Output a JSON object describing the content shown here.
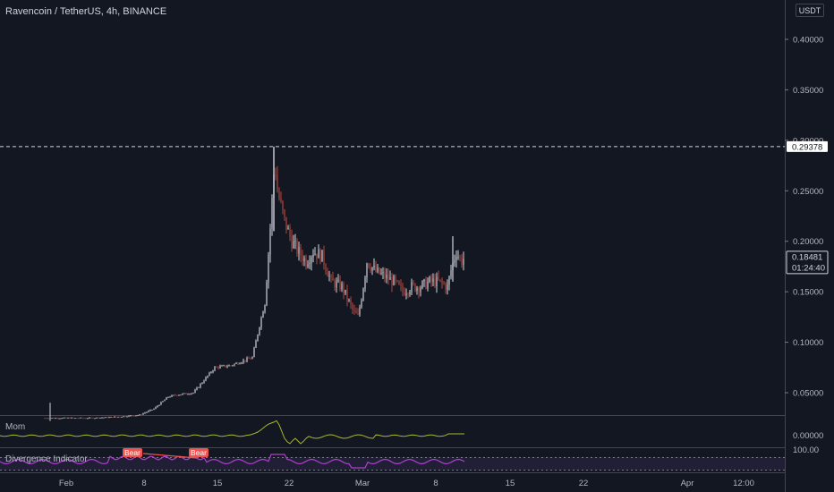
{
  "header": {
    "title": "Ravencoin / TetherUS, 4h, BINANCE",
    "currency": "USDT"
  },
  "price_axis": {
    "ticks": [
      "0.40000",
      "0.35000",
      "0.30000",
      "0.25000",
      "0.20000",
      "0.15000",
      "0.10000",
      "0.05000"
    ],
    "high_label": "0.29378",
    "last_price_label": "0.18481",
    "countdown_label": "01:24:40"
  },
  "indicators": {
    "momentum": {
      "label": "Mom",
      "tick": "0.00000"
    },
    "divergence": {
      "label": "Divergence Indicator",
      "tick": "100.00",
      "badges": [
        "Bear",
        "Bear"
      ]
    }
  },
  "time_axis": {
    "ticks": [
      "Feb",
      "8",
      "15",
      "22",
      "Mar",
      "8",
      "15",
      "22",
      "Apr",
      "12:00"
    ]
  },
  "colors": {
    "background": "#131722",
    "up": "#d1d4dc",
    "down": "#b2473f",
    "momentum_line": "#a8b92b",
    "divergence_line": "#b03fd0",
    "bear_badge": "#ef5350"
  },
  "chart_data": {
    "type": "candlestick",
    "symbol": "RVN/USDT",
    "interval": "4h",
    "ylim": [
      0,
      0.42
    ],
    "high": 0.29378,
    "last": 0.18481,
    "close_trend": {
      "x": [
        "Jan 30",
        "Feb 2",
        "Feb 5",
        "Feb 8",
        "Feb 10",
        "Feb 12",
        "Feb 14",
        "Feb 15",
        "Feb 17",
        "Feb 18",
        "Feb 19",
        "Feb 20",
        "Feb 21",
        "Feb 22",
        "Feb 23",
        "Feb 24",
        "Feb 25",
        "Feb 26",
        "Feb 28",
        "Mar 1",
        "Mar 3",
        "Mar 5",
        "Mar 7",
        "Mar 8",
        "Mar 9",
        "Mar 10"
      ],
      "y": [
        0.025,
        0.025,
        0.028,
        0.034,
        0.046,
        0.05,
        0.057,
        0.074,
        0.077,
        0.1,
        0.15,
        0.24,
        0.21,
        0.19,
        0.17,
        0.19,
        0.185,
        0.16,
        0.155,
        0.13,
        0.165,
        0.16,
        0.155,
        0.16,
        0.16,
        0.1848
      ]
    }
  }
}
